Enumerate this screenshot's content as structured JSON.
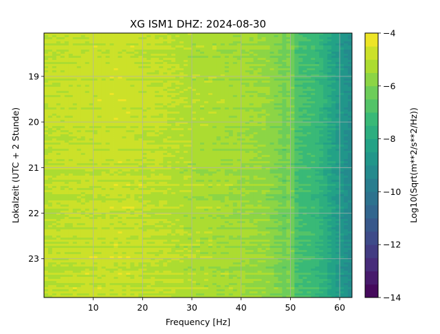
{
  "chart_data": {
    "type": "heatmap",
    "title": "XG ISM1  DHZ: 2024-08-30",
    "xlabel": "Frequency [Hz]",
    "ylabel": "Lokalzeit (UTC + 2 Stunde)",
    "xlim": [
      0,
      62.5
    ],
    "ylim": [
      18.05,
      23.85
    ],
    "y_inverted": true,
    "x_ticks": [
      10,
      20,
      30,
      40,
      50,
      60
    ],
    "y_ticks": [
      19,
      20,
      21,
      22,
      23
    ],
    "grid": true,
    "colormap": "viridis",
    "colorbar": {
      "label": "Log10(Sqrt(m**2/s**2/Hz))",
      "range": [
        -14,
        -4
      ],
      "ticks": [
        -4,
        -6,
        -8,
        -10,
        -12,
        -14
      ],
      "levels": 20
    },
    "spectrum_profile": {
      "frequency_hz": [
        0,
        5,
        10,
        15,
        20,
        25,
        30,
        35,
        40,
        45,
        48,
        50,
        52,
        55,
        58,
        60,
        62.5
      ],
      "log10_amplitude": [
        -5.0,
        -4.9,
        -4.85,
        -4.8,
        -4.9,
        -5.0,
        -5.2,
        -5.3,
        -5.4,
        -5.6,
        -6.0,
        -6.6,
        -7.0,
        -7.2,
        -8.0,
        -8.6,
        -9.2
      ]
    },
    "notable_lines_hz": [
      50
    ]
  }
}
